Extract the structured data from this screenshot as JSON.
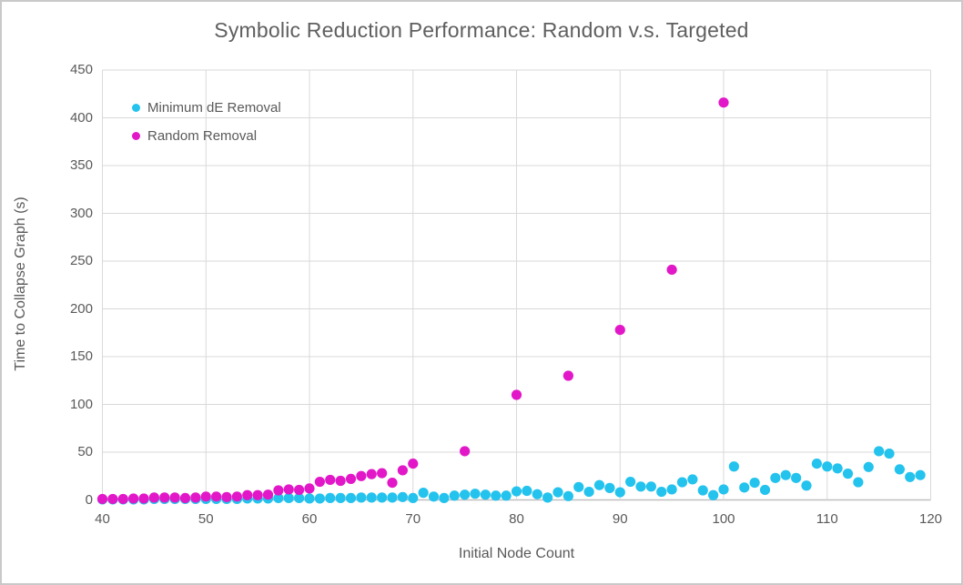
{
  "chart": {
    "title": "Symbolic Reduction Performance: Random v.s. Targeted",
    "colors": {
      "grid": "#d9d9d9",
      "axis": "#bfbfbf",
      "text": "#595959",
      "series_min_de": "#23c3ee",
      "series_random": "#e218c8"
    }
  },
  "chart_data": {
    "type": "scatter",
    "title": "Symbolic Reduction Performance: Random v.s. Targeted",
    "xlabel": "Initial Node Count",
    "ylabel": "Time to Collapse Graph (s)",
    "xlim": [
      40,
      120
    ],
    "ylim": [
      0,
      450
    ],
    "x_ticks": [
      40,
      50,
      60,
      70,
      80,
      90,
      100,
      110,
      120
    ],
    "y_ticks": [
      0,
      50,
      100,
      150,
      200,
      250,
      300,
      350,
      400,
      450
    ],
    "grid": true,
    "legend_position": "top-left-inside",
    "series": [
      {
        "name": "Minimum dE Removal",
        "color": "#23c3ee",
        "points": [
          [
            40,
            0.5
          ],
          [
            41,
            0.5
          ],
          [
            42,
            0.5
          ],
          [
            43,
            0.5
          ],
          [
            44,
            0.5
          ],
          [
            45,
            1
          ],
          [
            46,
            1
          ],
          [
            47,
            1
          ],
          [
            48,
            1
          ],
          [
            49,
            1
          ],
          [
            50,
            1
          ],
          [
            51,
            1
          ],
          [
            52,
            1
          ],
          [
            53,
            1
          ],
          [
            54,
            1.5
          ],
          [
            55,
            1.5
          ],
          [
            56,
            1.5
          ],
          [
            57,
            2
          ],
          [
            58,
            2
          ],
          [
            59,
            2
          ],
          [
            60,
            1.5
          ],
          [
            61,
            1.5
          ],
          [
            62,
            2
          ],
          [
            63,
            2
          ],
          [
            64,
            2
          ],
          [
            65,
            2.5
          ],
          [
            66,
            2.5
          ],
          [
            67,
            2.5
          ],
          [
            68,
            2.5
          ],
          [
            69,
            3
          ],
          [
            70,
            2
          ],
          [
            71,
            7.5
          ],
          [
            72,
            3.5
          ],
          [
            73,
            2
          ],
          [
            74,
            4.5
          ],
          [
            75,
            5.5
          ],
          [
            76,
            6.5
          ],
          [
            77,
            5.5
          ],
          [
            78,
            4.5
          ],
          [
            79,
            4.5
          ],
          [
            80,
            9
          ],
          [
            81,
            9.5
          ],
          [
            82,
            6
          ],
          [
            83,
            2.5
          ],
          [
            84,
            8
          ],
          [
            85,
            4
          ],
          [
            86,
            13.5
          ],
          [
            87,
            8.5
          ],
          [
            88,
            15.5
          ],
          [
            89,
            12.5
          ],
          [
            90,
            8
          ],
          [
            91,
            19
          ],
          [
            92,
            14
          ],
          [
            93,
            14
          ],
          [
            94,
            8.5
          ],
          [
            95,
            11
          ],
          [
            96,
            18.5
          ],
          [
            97,
            21.5
          ],
          [
            98,
            10
          ],
          [
            99,
            5
          ],
          [
            100,
            11
          ],
          [
            101,
            35
          ],
          [
            102,
            13
          ],
          [
            103,
            18
          ],
          [
            104,
            10.5
          ],
          [
            105,
            23
          ],
          [
            106,
            26
          ],
          [
            107,
            23
          ],
          [
            108,
            15
          ],
          [
            109,
            38
          ],
          [
            110,
            35
          ],
          [
            111,
            33
          ],
          [
            112,
            27.5
          ],
          [
            113,
            18.5
          ],
          [
            114,
            34.5
          ],
          [
            115,
            51
          ],
          [
            116,
            48.5
          ],
          [
            117,
            32
          ],
          [
            118,
            24
          ],
          [
            119,
            26
          ]
        ]
      },
      {
        "name": "Random Removal",
        "color": "#e218c8",
        "points": [
          [
            40,
            1
          ],
          [
            41,
            1
          ],
          [
            42,
            1
          ],
          [
            43,
            1.5
          ],
          [
            44,
            1.5
          ],
          [
            45,
            2.5
          ],
          [
            46,
            2.5
          ],
          [
            47,
            2.5
          ],
          [
            48,
            2
          ],
          [
            49,
            2.5
          ],
          [
            50,
            3.5
          ],
          [
            51,
            3.5
          ],
          [
            52,
            3
          ],
          [
            53,
            3.5
          ],
          [
            54,
            5
          ],
          [
            55,
            5
          ],
          [
            56,
            5.5
          ],
          [
            57,
            10
          ],
          [
            58,
            11
          ],
          [
            59,
            10.5
          ],
          [
            60,
            12
          ],
          [
            61,
            19
          ],
          [
            62,
            21
          ],
          [
            63,
            20
          ],
          [
            64,
            22
          ],
          [
            65,
            25
          ],
          [
            66,
            27
          ],
          [
            67,
            28
          ],
          [
            68,
            18
          ],
          [
            69,
            31
          ],
          [
            70,
            38
          ],
          [
            75,
            51
          ],
          [
            80,
            110
          ],
          [
            85,
            130
          ],
          [
            90,
            178
          ],
          [
            95,
            241
          ],
          [
            100,
            416
          ]
        ]
      }
    ]
  }
}
